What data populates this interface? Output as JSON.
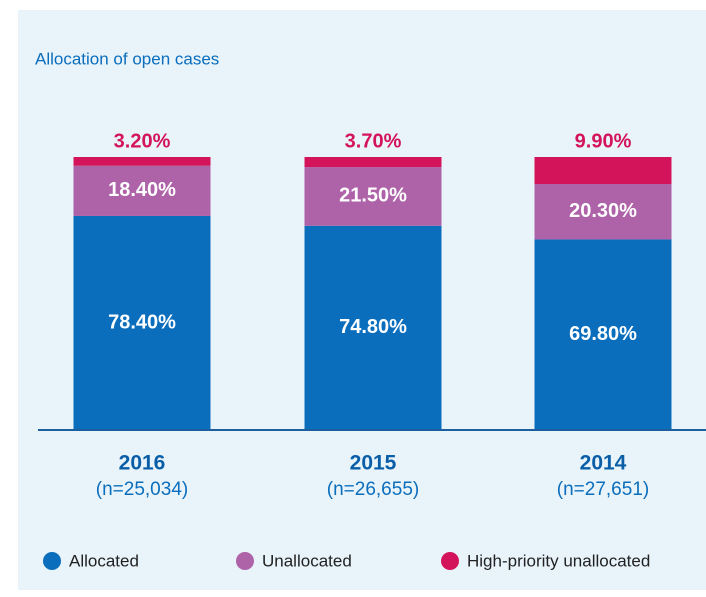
{
  "chart_data": {
    "type": "stacked_bar",
    "title": "Allocation of open cases",
    "categories": [
      "2016",
      "2015",
      "2014"
    ],
    "sample_sizes": [
      "(n=25,034)",
      "(n=26,655)",
      "(n=27,651)"
    ],
    "series": [
      {
        "name": "Allocated",
        "color": "#0a6ebd",
        "values": [
          78.4,
          74.8,
          69.8
        ],
        "value_labels": [
          "78.40%",
          "74.80%",
          "69.80%"
        ]
      },
      {
        "name": "Unallocated",
        "color": "#ae62a8",
        "values": [
          18.4,
          21.5,
          20.3
        ],
        "value_labels": [
          "18.40%",
          "21.50%",
          "20.30%"
        ]
      },
      {
        "name": "High-priority unallocated",
        "color": "#d4145a",
        "values": [
          3.2,
          3.7,
          9.9
        ],
        "value_labels": [
          "3.20%",
          "3.70%",
          "9.90%"
        ]
      }
    ],
    "ylim": [
      0,
      100
    ],
    "legend": "bottom"
  }
}
